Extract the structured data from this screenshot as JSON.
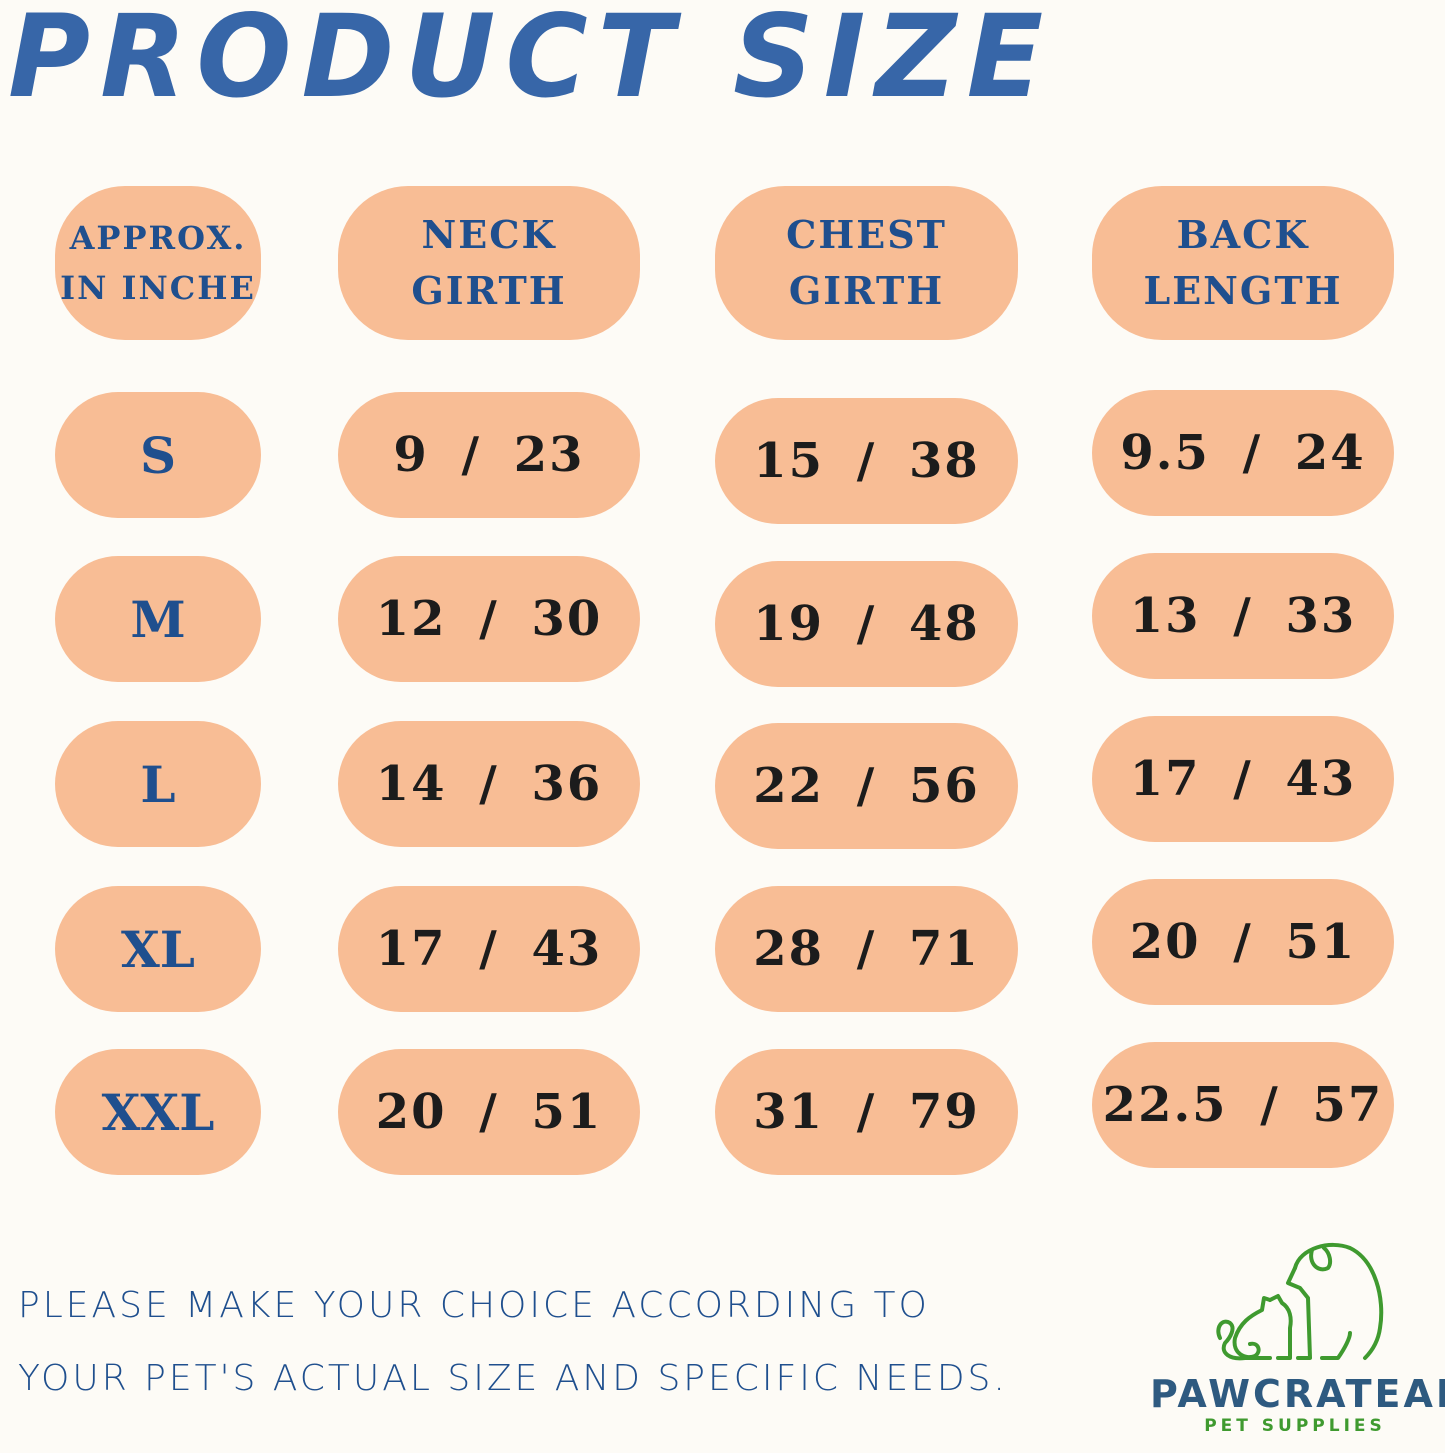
{
  "title": "PRODUCT SIZE",
  "headers": [
    "APPROX.\nIN INCHE",
    "NECK\nGIRTH",
    "CHEST\nGIRTH",
    "BACK\nLENGTH"
  ],
  "rows": [
    {
      "size": "S",
      "neck": "9 / 23",
      "chest": "15 / 38",
      "back": "9.5 / 24"
    },
    {
      "size": "M",
      "neck": "12 / 30",
      "chest": "19 / 48",
      "back": "13 / 33"
    },
    {
      "size": "L",
      "neck": "14 / 36",
      "chest": "22 / 56",
      "back": "17 / 43"
    },
    {
      "size": "XL",
      "neck": "17 / 43",
      "chest": "28 / 71",
      "back": "20 / 51"
    },
    {
      "size": "XXL",
      "neck": "20 / 51",
      "chest": "31 / 79",
      "back": "22.5 / 57"
    }
  ],
  "note": {
    "line1": "PLEASE MAKE YOUR CHOICE ACCORDING TO",
    "line2": "YOUR PET'S ACTUAL SIZE AND SPECIFIC NEEDS."
  },
  "logo": {
    "name": "PAWCRATEAN",
    "tagline": "PET SUPPLIES",
    "icon": "dog-and-cat-outline-icon"
  },
  "colors": {
    "title": "#3766a8",
    "pill": "#f8bd95",
    "header_text": "#1f4f8e",
    "value_text": "#1c1c1c",
    "logo_green": "#3f9a2f",
    "logo_text": "#2e5a80",
    "background": "#fdfbf6"
  }
}
